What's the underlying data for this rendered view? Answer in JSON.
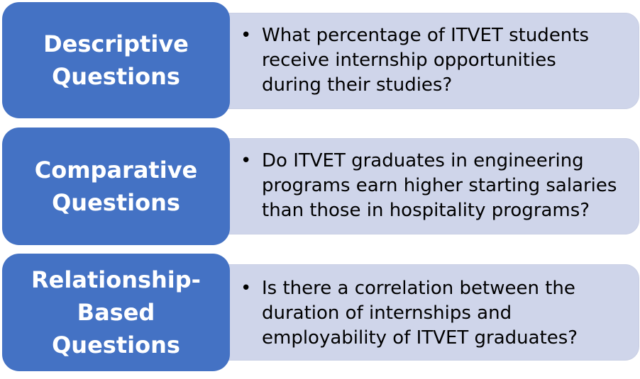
{
  "rows": [
    {
      "label": "Descriptive\nQuestions",
      "bullet_symbol": "•",
      "bullet": "What percentage of ITVET students\nreceive internship opportunities\nduring their studies?"
    },
    {
      "label": "Comparative\nQuestions",
      "bullet_symbol": "•",
      "bullet": "Do ITVET graduates in engineering\nprograms earn higher starting salaries\nthan those in hospitality programs?"
    },
    {
      "label": "Relationship-\nBased\nQuestions",
      "bullet_symbol": "•",
      "bullet": "Is there a correlation between the\nduration of internships and\nemployability of ITVET graduates?"
    }
  ],
  "colors": {
    "label_fill": "#4472c4",
    "content_fill": "#cfd5ea",
    "label_text": "#ffffff",
    "content_text": "#000000"
  }
}
